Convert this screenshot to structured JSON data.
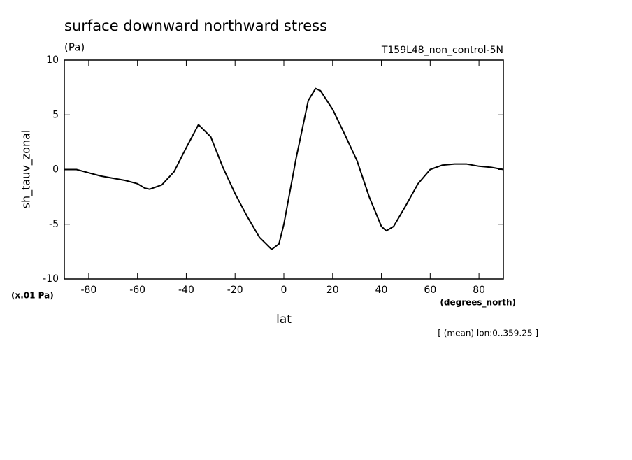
{
  "chart_data": {
    "type": "line",
    "title": "surface downward northward stress",
    "units": "(Pa)",
    "subtitle": "T159L48_non_control-5N",
    "ylabel": "sh_tauv_zonal",
    "yscale_note": "(x.01 Pa)",
    "xunits": "(degrees_north)",
    "xlabel": "lat",
    "annotation": "[ (mean) lon:0..359.25 ]",
    "x": [
      -90,
      -85,
      -80,
      -75,
      -70,
      -65,
      -60,
      -57,
      -55,
      -50,
      -45,
      -40,
      -35,
      -30,
      -25,
      -20,
      -15,
      -10,
      -5,
      -2,
      0,
      5,
      10,
      13,
      15,
      20,
      25,
      30,
      35,
      40,
      42,
      45,
      50,
      55,
      60,
      65,
      70,
      75,
      80,
      85,
      90
    ],
    "series": [
      {
        "name": "sh_tauv_zonal",
        "color": "#000000",
        "values": [
          0.0,
          0.0,
          -0.3,
          -0.6,
          -0.8,
          -1.0,
          -1.3,
          -1.7,
          -1.8,
          -1.4,
          -0.2,
          2.0,
          4.1,
          3.0,
          0.2,
          -2.2,
          -4.3,
          -6.2,
          -7.3,
          -6.8,
          -5.0,
          1.0,
          6.3,
          7.4,
          7.2,
          5.5,
          3.2,
          0.8,
          -2.5,
          -5.2,
          -5.6,
          -5.2,
          -3.3,
          -1.3,
          0.0,
          0.4,
          0.5,
          0.5,
          0.3,
          0.2,
          0.0
        ]
      }
    ],
    "xlim": [
      -90,
      90
    ],
    "xticks": [
      -80,
      -60,
      -40,
      -20,
      0,
      20,
      40,
      60,
      80
    ],
    "ylim": [
      -10,
      10
    ],
    "yticks": [
      -10,
      -5,
      0,
      5,
      10
    ]
  }
}
